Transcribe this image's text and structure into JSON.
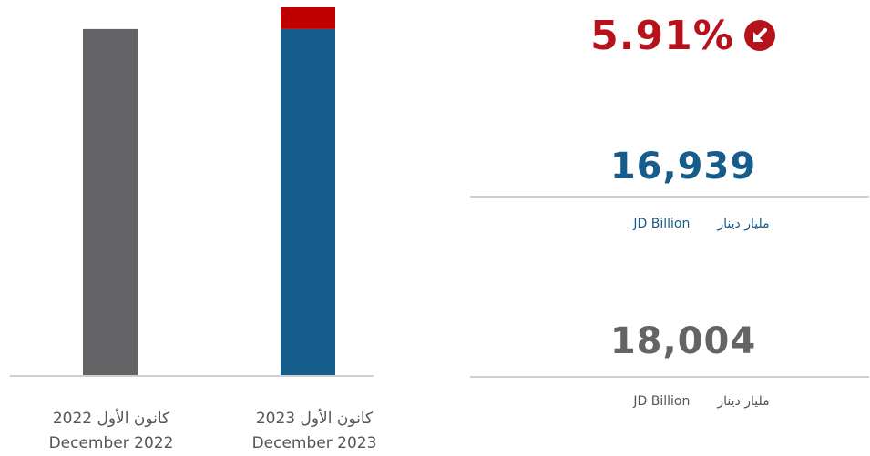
{
  "chart_data": {
    "type": "bar",
    "categories": [
      "December 2022",
      "December 2023"
    ],
    "category_labels_ar": [
      "كانون الأول 2022",
      "كانون الأول 2023"
    ],
    "series": [
      {
        "values": [
          16939,
          16939
        ],
        "colors": [
          "#646466",
          "#175d8b"
        ]
      },
      {
        "values": [
          0,
          1065
        ],
        "colors": [
          "#c00000",
          "#c00000"
        ]
      }
    ],
    "stacked": true,
    "ylim": [
      0,
      18004
    ],
    "xlabel": "",
    "ylabel": "",
    "grid": false
  },
  "change": {
    "value": "5.91%",
    "direction": "down-left",
    "icon": "arrow-down-left-icon",
    "color": "#b5121b"
  },
  "figures": [
    {
      "value": "16,939",
      "unit_ar": "مليار دينار",
      "unit_en": "JD Billion",
      "color": "#175d8b"
    },
    {
      "value": "18,004",
      "unit_ar": "مليار دينار",
      "unit_en": "JD Billion",
      "color": "#646466"
    }
  ],
  "colors": {
    "red": "#c00000",
    "blue": "#175d8b",
    "gray": "#646466",
    "axis": "#cfcfcf"
  }
}
